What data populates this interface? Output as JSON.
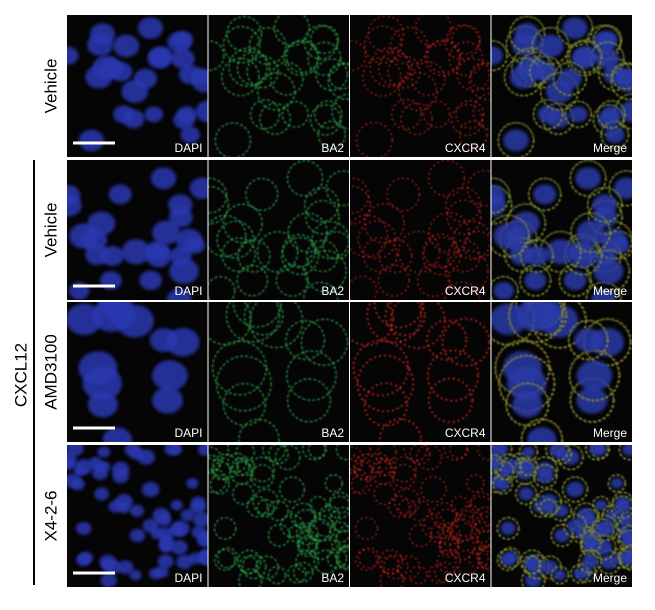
{
  "group_label": "CXCL12",
  "rows": [
    {
      "label": "Vehicle",
      "channels": [
        "DAPI",
        "BA2",
        "CXCR4",
        "Merge"
      ]
    },
    {
      "label": "Vehicle",
      "channels": [
        "DAPI",
        "BA2",
        "CXCR4",
        "Merge"
      ]
    },
    {
      "label": "AMD3100",
      "channels": [
        "DAPI",
        "BA2",
        "CXCR4",
        "Merge"
      ]
    },
    {
      "label": "X4-2-6",
      "channels": [
        "DAPI",
        "BA2",
        "CXCR4",
        "Merge"
      ]
    }
  ]
}
